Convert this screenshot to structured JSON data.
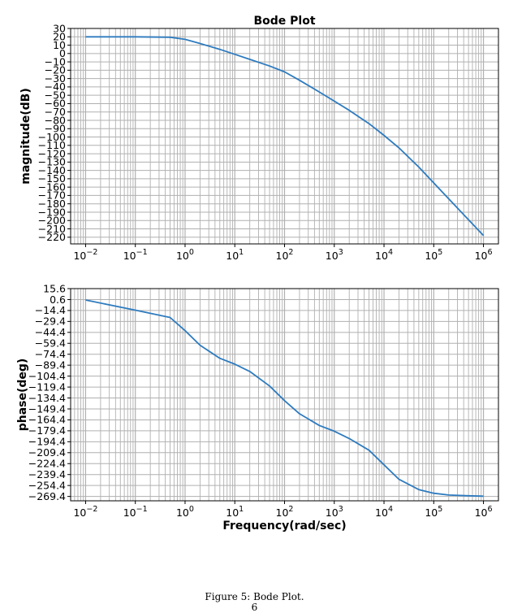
{
  "caption": "Figure 5: Bode Plot.",
  "page_number": "6",
  "colors": {
    "line": "#2e7bbf",
    "grid": "#b0b0b0",
    "axis": "#000000"
  },
  "chart_data": [
    {
      "type": "line",
      "title": "Bode Plot",
      "xlabel": "",
      "ylabel": "magnitude(dB)",
      "xscale": "log",
      "xlim": [
        0.005,
        2000000
      ],
      "ylim": [
        -228,
        30
      ],
      "grid": true,
      "xticks": [
        0.01,
        0.1,
        1,
        10,
        100,
        1000,
        10000,
        100000,
        1000000
      ],
      "xtick_labels": [
        [
          "10",
          "−2"
        ],
        [
          "10",
          "−1"
        ],
        [
          "10",
          "0"
        ],
        [
          "10",
          "1"
        ],
        [
          "10",
          "2"
        ],
        [
          "10",
          "3"
        ],
        [
          "10",
          "4"
        ],
        [
          "10",
          "5"
        ],
        [
          "10",
          "6"
        ]
      ],
      "yticks": [
        30,
        20,
        10,
        0,
        -10,
        -20,
        -30,
        -40,
        -50,
        -60,
        -70,
        -80,
        -90,
        -100,
        -110,
        -120,
        -130,
        -140,
        -150,
        -160,
        -170,
        -180,
        -190,
        -200,
        -210,
        -220
      ],
      "ytick_labels": [
        "30",
        "20",
        "10",
        "0",
        "−10",
        "−20",
        "−30",
        "−40",
        "−50",
        "−60",
        "−70",
        "−80",
        "−90",
        "−100",
        "−110",
        "−120",
        "−130",
        "−140",
        "−150",
        "−160",
        "−170",
        "−180",
        "−190",
        "−200",
        "−210",
        "−220"
      ],
      "series": [
        {
          "x": [
            0.01,
            0.1,
            0.5,
            1,
            2,
            5,
            10,
            20,
            50,
            100,
            200,
            500,
            1000,
            2000,
            5000,
            10000,
            20000,
            50000,
            100000,
            200000,
            500000,
            1000000
          ],
          "values": [
            20,
            20,
            19.5,
            17,
            12,
            5,
            -1,
            -7,
            -15,
            -22,
            -32,
            -46,
            -57,
            -68,
            -84,
            -98,
            -113,
            -136,
            -155,
            -174,
            -199,
            -218
          ]
        }
      ]
    },
    {
      "type": "line",
      "title": "",
      "xlabel": "Frequency(rad/sec)",
      "ylabel": "phase(deg)",
      "xscale": "log",
      "xlim": [
        0.005,
        2000000
      ],
      "ylim": [
        -275.4,
        15.6
      ],
      "grid": true,
      "xticks": [
        0.01,
        0.1,
        1,
        10,
        100,
        1000,
        10000,
        100000,
        1000000
      ],
      "xtick_labels": [
        [
          "10",
          "−2"
        ],
        [
          "10",
          "−1"
        ],
        [
          "10",
          "0"
        ],
        [
          "10",
          "1"
        ],
        [
          "10",
          "2"
        ],
        [
          "10",
          "3"
        ],
        [
          "10",
          "4"
        ],
        [
          "10",
          "5"
        ],
        [
          "10",
          "6"
        ]
      ],
      "yticks": [
        15.6,
        0.6,
        -14.4,
        -29.4,
        -44.4,
        -59.4,
        -74.4,
        -89.4,
        -104.4,
        -119.4,
        -134.4,
        -149.4,
        -164.4,
        -179.4,
        -194.4,
        -209.4,
        -224.4,
        -239.4,
        -254.4,
        -269.4
      ],
      "ytick_labels": [
        "15.6",
        "0.6",
        "−14.4",
        "−29.4",
        "−44.4",
        "−59.4",
        "−74.4",
        "−89.4",
        "−104.4",
        "−119.4",
        "−134.4",
        "−149.4",
        "−164.4",
        "−179.4",
        "−194.4",
        "−209.4",
        "−224.4",
        "−239.4",
        "−254.4",
        "−269.4"
      ],
      "series": [
        {
          "x": [
            0.01,
            0.1,
            0.5,
            1,
            2,
            5,
            10,
            20,
            50,
            100,
            200,
            500,
            1000,
            2000,
            5000,
            10000,
            20000,
            50000,
            100000,
            200000,
            500000,
            1000000
          ],
          "values": [
            0,
            -14,
            -24,
            -42,
            -62,
            -80,
            -88,
            -98,
            -118,
            -138,
            -156,
            -172,
            -180,
            -190,
            -206,
            -226,
            -246,
            -260,
            -265,
            -267.5,
            -268.5,
            -269
          ]
        }
      ]
    }
  ]
}
